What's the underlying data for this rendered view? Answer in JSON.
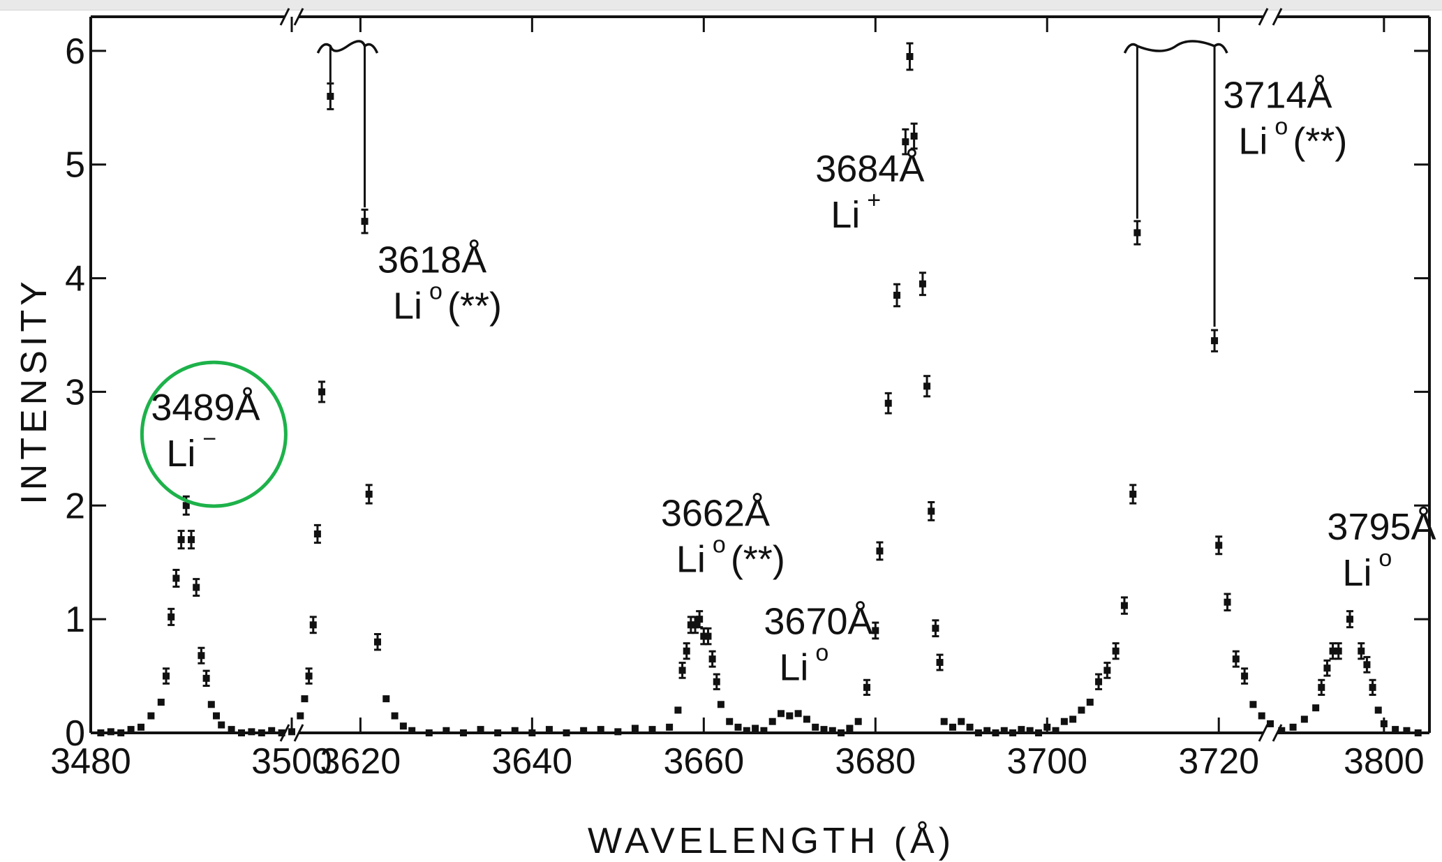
{
  "chart_data": {
    "type": "scatter",
    "title": "",
    "xlabel": "WAVELENGTH (Å)",
    "ylabel": "INTENSITY",
    "ylim": [
      0,
      6.3
    ],
    "grid": false,
    "legend": "none",
    "axis_breaks": [
      "3500–3620",
      "3720–3800"
    ],
    "x_segments": [
      {
        "from": 3480,
        "to": 3500,
        "ticks": [
          3480,
          3500
        ]
      },
      {
        "from": 3612,
        "to": 3726,
        "ticks": [
          3620,
          3640,
          3660,
          3680,
          3700,
          3720
        ]
      },
      {
        "from": 3790,
        "to": 3804,
        "ticks": [
          3800
        ]
      }
    ],
    "x_tick_labels": [
      "3480",
      "3500",
      "3620",
      "3640",
      "3660",
      "3680",
      "3700",
      "3720",
      "3800"
    ],
    "y_ticks": [
      0,
      1,
      2,
      3,
      4,
      5,
      6
    ],
    "y_tick_labels": [
      "0",
      "1",
      "2",
      "3",
      "4",
      "5",
      "6"
    ],
    "highlight_color": "#1db24a",
    "ink_color": "#111111",
    "series": [
      {
        "values": [
          [
            3481,
            0.0
          ],
          [
            3482,
            0.01
          ],
          [
            3483,
            0.0
          ],
          [
            3484,
            0.03
          ],
          [
            3485,
            0.05
          ],
          [
            3486,
            0.15
          ],
          [
            3487,
            0.27
          ],
          [
            3487.5,
            0.5
          ],
          [
            3488,
            1.02
          ],
          [
            3488.5,
            1.36
          ],
          [
            3489,
            1.7
          ],
          [
            3489.5,
            2.0
          ],
          [
            3490,
            1.7
          ],
          [
            3490.5,
            1.28
          ],
          [
            3491,
            0.68
          ],
          [
            3491.5,
            0.48
          ],
          [
            3492,
            0.25
          ],
          [
            3492.5,
            0.15
          ],
          [
            3493,
            0.07
          ],
          [
            3494,
            0.03
          ],
          [
            3495,
            0.0
          ],
          [
            3496,
            0.01
          ],
          [
            3497,
            0.0
          ],
          [
            3498,
            0.02
          ],
          [
            3499,
            0.0
          ],
          [
            3500,
            0.01
          ],
          [
            3613,
            0.15
          ],
          [
            3613.5,
            0.3
          ],
          [
            3614,
            0.5
          ],
          [
            3614.5,
            0.95
          ],
          [
            3615,
            1.75
          ],
          [
            3615.5,
            3.0
          ],
          [
            3616.5,
            5.6
          ],
          [
            3620.5,
            4.5
          ],
          [
            3621,
            2.1
          ],
          [
            3622,
            0.8
          ],
          [
            3623,
            0.3
          ],
          [
            3624,
            0.15
          ],
          [
            3625,
            0.06
          ],
          [
            3626,
            0.02
          ],
          [
            3628,
            0.0
          ],
          [
            3630,
            0.02
          ],
          [
            3632,
            0.0
          ],
          [
            3634,
            0.03
          ],
          [
            3636,
            0.0
          ],
          [
            3638,
            0.02
          ],
          [
            3640,
            0.0
          ],
          [
            3642,
            0.03
          ],
          [
            3644,
            0.0
          ],
          [
            3646,
            0.02
          ],
          [
            3648,
            0.03
          ],
          [
            3650,
            0.01
          ],
          [
            3652,
            0.04
          ],
          [
            3654,
            0.03
          ],
          [
            3656,
            0.05
          ],
          [
            3657,
            0.2
          ],
          [
            3657.5,
            0.55
          ],
          [
            3658,
            0.72
          ],
          [
            3658.5,
            0.95
          ],
          [
            3659,
            0.95
          ],
          [
            3659.5,
            1.0
          ],
          [
            3660,
            0.85
          ],
          [
            3660.5,
            0.85
          ],
          [
            3661,
            0.65
          ],
          [
            3661.5,
            0.45
          ],
          [
            3662,
            0.25
          ],
          [
            3663,
            0.1
          ],
          [
            3664,
            0.05
          ],
          [
            3665,
            0.02
          ],
          [
            3666,
            0.04
          ],
          [
            3667,
            0.02
          ],
          [
            3668,
            0.1
          ],
          [
            3669,
            0.17
          ],
          [
            3670,
            0.15
          ],
          [
            3671,
            0.17
          ],
          [
            3672,
            0.12
          ],
          [
            3673,
            0.05
          ],
          [
            3674,
            0.03
          ],
          [
            3675,
            0.02
          ],
          [
            3676,
            0.0
          ],
          [
            3677,
            0.04
          ],
          [
            3678,
            0.1
          ],
          [
            3679,
            0.4
          ],
          [
            3680,
            0.9
          ],
          [
            3680.5,
            1.6
          ],
          [
            3681.5,
            2.9
          ],
          [
            3682.5,
            3.85
          ],
          [
            3683.5,
            5.2
          ],
          [
            3684,
            5.95
          ],
          [
            3684.5,
            5.25
          ],
          [
            3685.5,
            3.95
          ],
          [
            3686,
            3.05
          ],
          [
            3686.5,
            1.95
          ],
          [
            3687,
            0.92
          ],
          [
            3687.5,
            0.62
          ],
          [
            3688,
            0.1
          ],
          [
            3689,
            0.05
          ],
          [
            3690,
            0.1
          ],
          [
            3691,
            0.05
          ],
          [
            3692,
            0.0
          ],
          [
            3693,
            0.02
          ],
          [
            3694,
            0.0
          ],
          [
            3695,
            0.02
          ],
          [
            3696,
            0.0
          ],
          [
            3697,
            0.03
          ],
          [
            3698,
            0.02
          ],
          [
            3699,
            0.0
          ],
          [
            3700,
            0.05
          ],
          [
            3701,
            0.02
          ],
          [
            3702,
            0.1
          ],
          [
            3703,
            0.12
          ],
          [
            3704,
            0.2
          ],
          [
            3705,
            0.27
          ],
          [
            3706,
            0.45
          ],
          [
            3707,
            0.55
          ],
          [
            3708,
            0.72
          ],
          [
            3709,
            1.12
          ],
          [
            3710,
            2.1
          ],
          [
            3710.5,
            4.4
          ],
          [
            3719.5,
            3.45
          ],
          [
            3720,
            1.65
          ],
          [
            3721,
            1.15
          ],
          [
            3722,
            0.65
          ],
          [
            3723,
            0.5
          ],
          [
            3724,
            0.25
          ],
          [
            3725,
            0.15
          ],
          [
            3726,
            0.08
          ],
          [
            3791,
            0.02
          ],
          [
            3792,
            0.05
          ],
          [
            3793,
            0.12
          ],
          [
            3794,
            0.22
          ],
          [
            3794.5,
            0.4
          ],
          [
            3795,
            0.57
          ],
          [
            3795.5,
            0.72
          ],
          [
            3796,
            0.72
          ],
          [
            3797,
            1.0
          ],
          [
            3798,
            0.72
          ],
          [
            3798.5,
            0.6
          ],
          [
            3799,
            0.4
          ],
          [
            3799.5,
            0.2
          ],
          [
            3800,
            0.08
          ],
          [
            3801,
            0.03
          ],
          [
            3802,
            0.02
          ],
          [
            3803,
            0.0
          ]
        ]
      }
    ],
    "annotations": [
      {
        "wavelength": "3489Å",
        "species": "Li",
        "sup": "−",
        "note": "",
        "x": 3486,
        "y": 2.75,
        "highlighted": true
      },
      {
        "wavelength": "3618Å",
        "species": "Li",
        "sup": "o",
        "note": "(**)",
        "x": 3622,
        "y": 4.05
      },
      {
        "wavelength": "3684Å",
        "species": "Li",
        "sup": "+",
        "note": "",
        "x": 3673,
        "y": 4.85
      },
      {
        "wavelength": "3662Å",
        "species": "Li",
        "sup": "o",
        "note": "(**)",
        "x": 3655,
        "y": 1.82
      },
      {
        "wavelength": "3670Å",
        "species": "Li",
        "sup": "o",
        "note": "",
        "x": 3667,
        "y": 0.87
      },
      {
        "wavelength": "3714Å",
        "species": "Li",
        "sup": "o",
        "note": "(**)",
        "x": 3720.5,
        "y": 5.5
      },
      {
        "wavelength": "3795Å",
        "species": "Li",
        "sup": "o",
        "note": "",
        "x": 3795,
        "y": 1.7
      }
    ],
    "offscale_markers": [
      {
        "x_left": 3616.5,
        "x_right": 3620.5
      },
      {
        "x_left": 3710.5,
        "x_right": 3719.5
      }
    ]
  }
}
